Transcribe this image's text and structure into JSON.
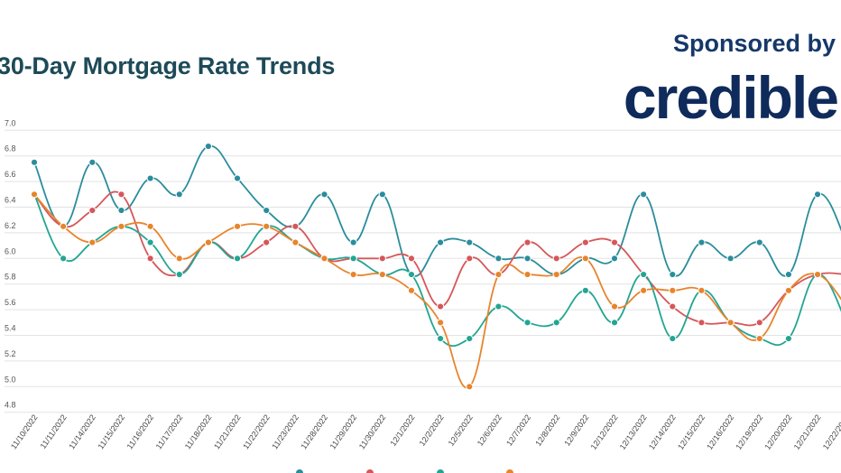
{
  "header": {
    "title": "30-Day Mortgage Rate Trends",
    "sponsor_label": "Sponsored by",
    "sponsor_logo": "credible"
  },
  "colors": {
    "title": "#1d4a58",
    "logo": "#0f2b5b",
    "grid": "#e3e3e3"
  },
  "chart_data": {
    "type": "line",
    "title": "30-Day Mortgage Rate Trends",
    "xlabel": "",
    "ylabel": "",
    "ylim": [
      4.8,
      7.0
    ],
    "yticks": [
      "7.0",
      "6.8",
      "6.6",
      "6.4",
      "6.2",
      "6.0",
      "5.8",
      "5.6",
      "5.4",
      "5.2",
      "5.0",
      "4.8"
    ],
    "grid": true,
    "legend": "bottom",
    "x": [
      "11/10/2022",
      "11/11/2022",
      "11/14/2022",
      "11/15/2022",
      "11/16/2022",
      "11/17/2022",
      "11/18/2022",
      "11/21/2022",
      "11/22/2022",
      "11/23/2022",
      "11/28/2022",
      "11/29/2022",
      "11/30/2022",
      "12/1/2022",
      "12/2/2022",
      "12/5/2022",
      "12/6/2022",
      "12/7/2022",
      "12/8/2022",
      "12/9/2022",
      "12/12/2022",
      "12/13/2022",
      "12/14/2022",
      "12/15/2022",
      "12/16/2022",
      "12/19/2022",
      "12/20/2022",
      "12/21/2022",
      "12/22/2022"
    ],
    "series": [
      {
        "color": "#2a8d9c",
        "values": [
          6.75,
          6.25,
          6.75,
          6.375,
          6.625,
          6.5,
          6.875,
          6.625,
          6.375,
          6.25,
          6.5,
          6.125,
          6.5,
          5.875,
          6.125,
          6.125,
          6.0,
          6.0,
          5.875,
          6.0,
          6.0,
          6.5,
          5.875,
          6.125,
          6.0,
          6.125,
          5.875,
          6.5,
          6.125
        ]
      },
      {
        "color": "#d5575a",
        "values": [
          6.5,
          6.25,
          6.375,
          6.5,
          6.0,
          5.875,
          6.125,
          6.0,
          6.125,
          6.25,
          6.0,
          6.0,
          6.0,
          6.0,
          5.625,
          6.0,
          5.875,
          6.125,
          6.0,
          6.125,
          6.125,
          5.875,
          5.625,
          5.5,
          5.5,
          5.5,
          5.75,
          5.875,
          5.875
        ]
      },
      {
        "color": "#22a592",
        "values": [
          6.5,
          6.0,
          6.125,
          6.25,
          6.125,
          5.875,
          6.125,
          6.0,
          6.25,
          6.125,
          6.0,
          6.0,
          5.875,
          5.875,
          5.375,
          5.375,
          5.625,
          5.5,
          5.5,
          5.75,
          5.5,
          5.875,
          5.375,
          5.75,
          5.5,
          5.375,
          5.375,
          5.875,
          5.5
        ]
      },
      {
        "color": "#e8842c",
        "values": [
          6.5,
          6.25,
          6.125,
          6.25,
          6.25,
          6.0,
          6.125,
          6.25,
          6.25,
          6.125,
          6.0,
          5.875,
          5.875,
          5.75,
          5.5,
          5.0,
          5.875,
          5.875,
          5.875,
          6.0,
          5.625,
          5.75,
          5.75,
          5.75,
          5.5,
          5.375,
          5.75,
          5.875,
          5.625
        ]
      }
    ]
  }
}
